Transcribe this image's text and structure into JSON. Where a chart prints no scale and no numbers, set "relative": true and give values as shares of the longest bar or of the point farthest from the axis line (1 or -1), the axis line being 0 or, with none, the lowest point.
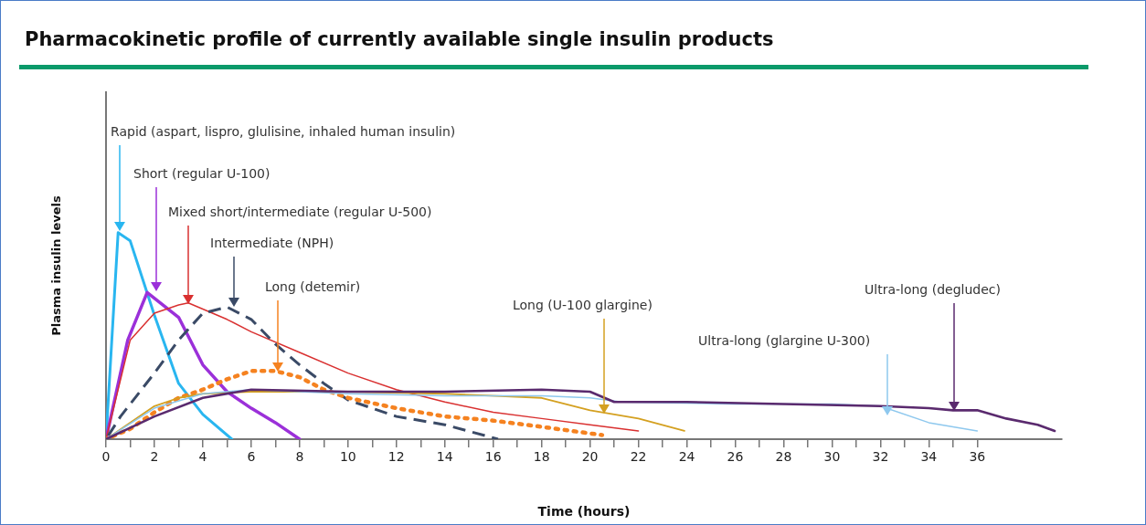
{
  "chart_data": {
    "type": "line",
    "title": "Pharmacokinetic profile of currently available single insulin products",
    "xlabel": "Time (hours)",
    "ylabel": "Plasma insulin levels",
    "relative": true,
    "marker": "none",
    "legend": false,
    "grid": false,
    "xlim": [
      0,
      39.5
    ],
    "xticks": [
      0,
      {
        "value": 1,
        "label": null
      },
      2,
      {
        "value": 3,
        "label": null
      },
      4,
      {
        "value": 5,
        "label": null
      },
      6,
      {
        "value": 7,
        "label": null
      },
      8,
      {
        "value": 9,
        "label": null
      },
      10,
      {
        "value": 11,
        "label": null
      },
      12,
      {
        "value": 13,
        "label": null
      },
      14,
      {
        "value": 15,
        "label": null
      },
      16,
      {
        "value": 17,
        "label": null
      },
      18,
      {
        "value": 19,
        "label": null
      },
      20,
      {
        "value": 21,
        "label": null
      },
      22,
      {
        "value": 23,
        "label": null
      },
      24,
      {
        "value": 25,
        "label": null
      },
      26,
      {
        "value": 27,
        "label": null
      },
      28,
      {
        "value": 29,
        "label": null
      },
      30,
      {
        "value": 31,
        "label": null
      },
      32,
      {
        "value": 33,
        "label": null
      },
      34,
      {
        "value": 35,
        "label": null
      },
      36
    ],
    "series": [
      {
        "color": "#29b6f0",
        "line_style": "solid",
        "x": [
          0,
          0.5,
          1,
          2,
          3,
          4,
          5.2
        ],
        "values": [
          0,
          1,
          0.96,
          0.6,
          0.27,
          0.12,
          0
        ]
      },
      {
        "color": "#9b30d9",
        "line_style": "solid",
        "x": [
          0,
          0.9,
          1.7,
          3,
          4,
          5,
          6,
          7,
          8
        ],
        "values": [
          0,
          0.48,
          0.71,
          0.59,
          0.36,
          0.23,
          0.15,
          0.08,
          0
        ]
      },
      {
        "color": "#d93030",
        "line_style": "solid",
        "x": [
          0,
          1,
          2,
          3,
          3.4,
          5,
          6,
          8,
          10,
          12,
          14,
          16,
          18,
          20,
          22
        ],
        "values": [
          0,
          0.48,
          0.61,
          0.65,
          0.66,
          0.58,
          0.52,
          0.42,
          0.32,
          0.24,
          0.18,
          0.13,
          0.1,
          0.07,
          0.04
        ]
      },
      {
        "color": "#3a4a66",
        "line_style": "dashed",
        "x": [
          0,
          0.6,
          2,
          3,
          4,
          5,
          6,
          7,
          8,
          9,
          10,
          12,
          14,
          16.2
        ],
        "values": [
          0,
          0.11,
          0.32,
          0.48,
          0.61,
          0.64,
          0.58,
          0.46,
          0.36,
          0.27,
          0.19,
          0.11,
          0.07,
          0
        ]
      },
      {
        "color": "#f58220",
        "line_style": "dotted",
        "x": [
          0,
          1,
          2,
          3,
          4,
          5,
          6,
          7,
          8,
          9,
          10,
          12,
          14,
          16,
          18,
          20.5
        ],
        "values": [
          0,
          0.05,
          0.13,
          0.2,
          0.24,
          0.29,
          0.33,
          0.33,
          0.3,
          0.24,
          0.2,
          0.15,
          0.11,
          0.09,
          0.06,
          0.02
        ]
      },
      {
        "color": "#d4a020",
        "line_style": "solid",
        "x": [
          0,
          2,
          3,
          4,
          6,
          10,
          14,
          18,
          20,
          22,
          23.9
        ],
        "values": [
          0,
          0.16,
          0.2,
          0.22,
          0.23,
          0.23,
          0.22,
          0.2,
          0.14,
          0.1,
          0.04
        ]
      },
      {
        "color": "#8ec8ee",
        "line_style": "solid",
        "x": [
          0,
          2,
          4,
          6,
          10,
          14,
          18,
          20,
          21.3,
          26,
          30,
          32,
          34,
          36
        ],
        "values": [
          0,
          0.15,
          0.22,
          0.24,
          0.22,
          0.21,
          0.21,
          0.2,
          0.18,
          0.17,
          0.17,
          0.16,
          0.08,
          0.04
        ]
      },
      {
        "color": "#5a2a6e",
        "line_style": "solid",
        "x": [
          0,
          2,
          4,
          6,
          10,
          14,
          18,
          20,
          21,
          24,
          32,
          34,
          35,
          36,
          37.2,
          38.5,
          39.2
        ],
        "values": [
          0,
          0.11,
          0.2,
          0.24,
          0.23,
          0.23,
          0.24,
          0.23,
          0.18,
          0.18,
          0.16,
          0.15,
          0.14,
          0.14,
          0.1,
          0.07,
          0.04
        ]
      }
    ],
    "annotations": [
      "Rapid (aspart, lispro, glulisine, inhaled human insulin)",
      "Short (regular U-100)",
      "Mixed short/intermediate (regular U-500)",
      "Intermediate (NPH)",
      "Long (detemir)",
      "Long (U-100 glargine)",
      "Ultra-long (glargine U-300)",
      "Ultra-long (degludec)"
    ]
  }
}
